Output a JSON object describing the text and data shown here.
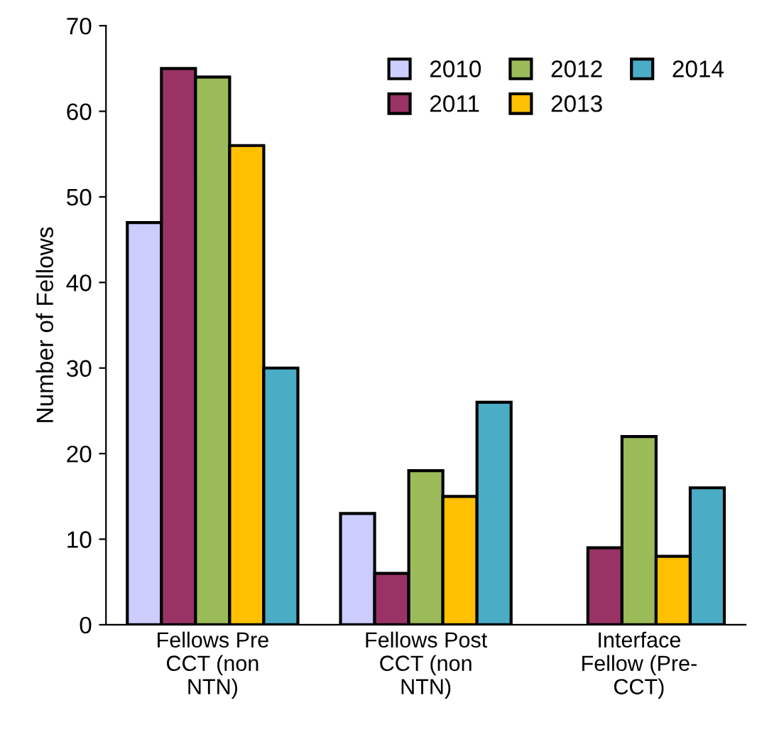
{
  "chart_data": {
    "type": "bar",
    "ylabel": "Number of Fellows",
    "categories": [
      "Fellows Pre\nCCT (non\nNTN)",
      "Fellows Post\nCCT (non\nNTN)",
      "Interface\nFellow (Pre-\nCCT)"
    ],
    "series": [
      {
        "name": "2010",
        "color": "#ccccff",
        "values": [
          47,
          13,
          null
        ]
      },
      {
        "name": "2011",
        "color": "#993366",
        "values": [
          65,
          6,
          9
        ]
      },
      {
        "name": "2012",
        "color": "#9bbb59",
        "values": [
          64,
          18,
          22
        ]
      },
      {
        "name": "2013",
        "color": "#ffc000",
        "values": [
          56,
          15,
          8
        ]
      },
      {
        "name": "2014",
        "color": "#4bacc6",
        "values": [
          30,
          26,
          16
        ]
      }
    ],
    "ylim": [
      0,
      70
    ],
    "yticks": [
      0,
      10,
      20,
      30,
      40,
      50,
      60,
      70
    ],
    "grid": false,
    "legend": "top right"
  }
}
